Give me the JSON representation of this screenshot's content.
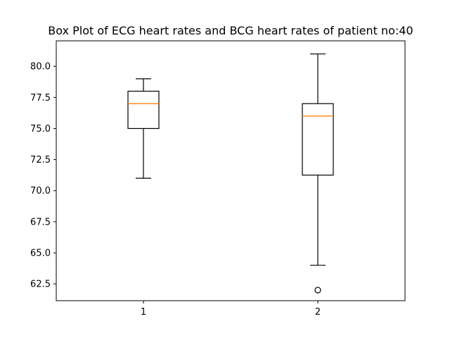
{
  "chart_data": {
    "type": "box",
    "title": "Box Plot of ECG heart rates and BCG heart rates of patient no:40",
    "xlabel": "",
    "ylabel": "",
    "ylim": [
      61.15,
      82.05
    ],
    "y_ticks": [
      62.5,
      65.0,
      67.5,
      70.0,
      72.5,
      75.0,
      77.5,
      80.0
    ],
    "y_tick_labels": [
      "62.5",
      "65.0",
      "67.5",
      "70.0",
      "72.5",
      "75.0",
      "77.5",
      "80.0"
    ],
    "categories": [
      "1",
      "2"
    ],
    "boxes": [
      {
        "label": "1",
        "whisker_low": 71.0,
        "q1": 75.0,
        "median": 77.0,
        "q3": 78.0,
        "whisker_high": 79.0,
        "outliers": []
      },
      {
        "label": "2",
        "whisker_low": 64.0,
        "q1": 71.25,
        "median": 76.0,
        "q3": 77.0,
        "whisker_high": 81.0,
        "outliers": [
          62.0
        ]
      }
    ],
    "grid": false,
    "colors": {
      "box": "#000000",
      "median": "#ff7f0e",
      "outlier": "#000000"
    }
  }
}
